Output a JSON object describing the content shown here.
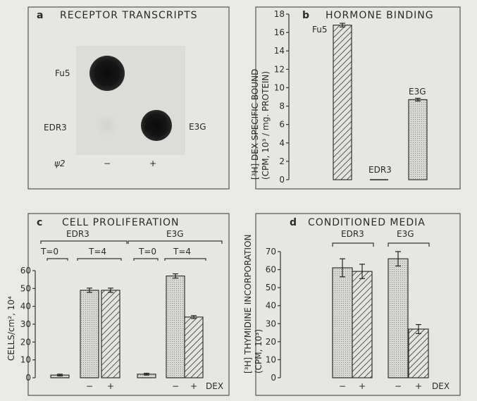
{
  "chart_data": [
    {
      "panel": "a",
      "type": "table",
      "title": "RECEPTOR TRANSCRIPTS",
      "row_labels": [
        "Fu5",
        "EDR3",
        "E3G"
      ],
      "x_label": "ψ2",
      "column_labels": [
        "−",
        "+"
      ],
      "spots": [
        {
          "label": "Fu5",
          "column": "−",
          "intensity": 1.0
        },
        {
          "label": "EDR3",
          "column": "−",
          "intensity": 0.05
        },
        {
          "label": "E3G",
          "column": "+",
          "intensity": 1.0
        }
      ]
    },
    {
      "panel": "b",
      "type": "bar",
      "title": "HORMONE BINDING",
      "ylabel_line1": "[³H] DEX SPECIFIC BOUND",
      "ylabel_line2": "(CPM, 10³ / mg. PROTEIN)",
      "ylim": [
        0,
        18
      ],
      "yticks": [
        "0",
        "2",
        "4",
        "6",
        "8",
        "10",
        "12",
        "14",
        "16",
        "18"
      ],
      "categories": [
        "Fu5",
        "EDR3",
        "E3G"
      ],
      "values": [
        16.8,
        0,
        8.7
      ],
      "errors": [
        0.2,
        0,
        0.15
      ],
      "patterns": [
        "hatch",
        "none",
        "dots"
      ]
    },
    {
      "panel": "c",
      "type": "bar",
      "title": "CELL PROLIFERATION",
      "ylabel": "CELLS/cm², 10⁴",
      "ylim": [
        0,
        60
      ],
      "yticks": [
        "0",
        "10",
        "20",
        "30",
        "40",
        "50",
        "60"
      ],
      "group_labels": [
        "EDR3",
        "E3G"
      ],
      "time_labels": [
        "T=0",
        "T=4",
        "T=0",
        "T=4"
      ],
      "dex_title": "DEX",
      "dex_labels": [
        "−",
        "+",
        "−",
        "+"
      ],
      "bars": [
        {
          "group": "EDR3",
          "time": "T=0",
          "dex": "",
          "value": 1.5,
          "error": 0.5,
          "pattern": "dots"
        },
        {
          "group": "EDR3",
          "time": "T=4",
          "dex": "−",
          "value": 49,
          "error": 1.2,
          "pattern": "dots"
        },
        {
          "group": "EDR3",
          "time": "T=4",
          "dex": "+",
          "value": 49,
          "error": 1.2,
          "pattern": "hatch"
        },
        {
          "group": "E3G",
          "time": "T=0",
          "dex": "",
          "value": 2,
          "error": 0.5,
          "pattern": "dots"
        },
        {
          "group": "E3G",
          "time": "T=4",
          "dex": "−",
          "value": 57,
          "error": 1.2,
          "pattern": "dots"
        },
        {
          "group": "E3G",
          "time": "T=4",
          "dex": "+",
          "value": 34,
          "error": 0.8,
          "pattern": "hatch"
        }
      ]
    },
    {
      "panel": "d",
      "type": "bar",
      "title": "CONDITIONED MEDIA",
      "ylabel_line1": "[³H] THYMIDINE INCORPORATION",
      "ylabel_line2": "(CPM, 10³)",
      "ylim": [
        0,
        70
      ],
      "yticks": [
        "0",
        "10",
        "20",
        "30",
        "40",
        "50",
        "60",
        "70"
      ],
      "group_labels": [
        "EDR3",
        "E3G"
      ],
      "dex_title": "DEX",
      "dex_labels": [
        "−",
        "+",
        "−",
        "+"
      ],
      "bars": [
        {
          "group": "EDR3",
          "dex": "−",
          "value": 61,
          "error": 5,
          "pattern": "dots"
        },
        {
          "group": "EDR3",
          "dex": "+",
          "value": 59,
          "error": 4,
          "pattern": "hatch"
        },
        {
          "group": "E3G",
          "dex": "−",
          "value": 66,
          "error": 4,
          "pattern": "dots"
        },
        {
          "group": "E3G",
          "dex": "+",
          "value": 27,
          "error": 2.5,
          "pattern": "hatch"
        }
      ]
    }
  ]
}
